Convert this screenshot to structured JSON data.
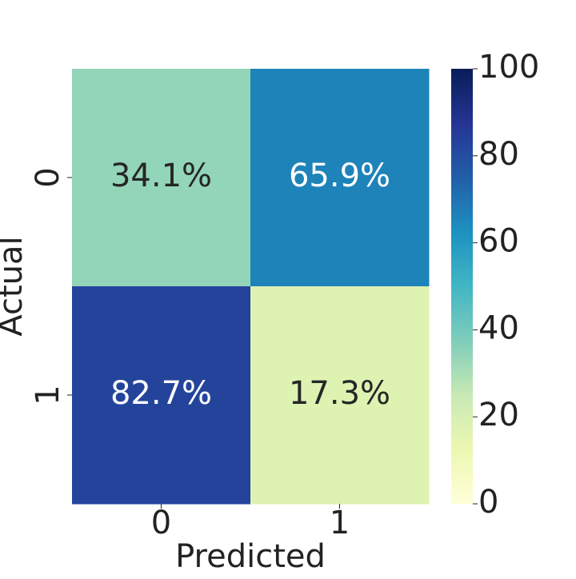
{
  "chart_data": {
    "type": "heatmap",
    "x_label": "Predicted",
    "y_label": "Actual",
    "x_categories": [
      "0",
      "1"
    ],
    "y_categories": [
      "0",
      "1"
    ],
    "values": [
      [
        34.1,
        65.9
      ],
      [
        82.7,
        17.3
      ]
    ],
    "value_labels": [
      [
        "34.1%",
        "65.9%"
      ],
      [
        "82.7%",
        "17.3%"
      ]
    ],
    "colormap": "YlGnBu",
    "clim": [
      0,
      100
    ],
    "cticks": [
      0,
      20,
      40,
      60,
      80,
      100
    ]
  }
}
